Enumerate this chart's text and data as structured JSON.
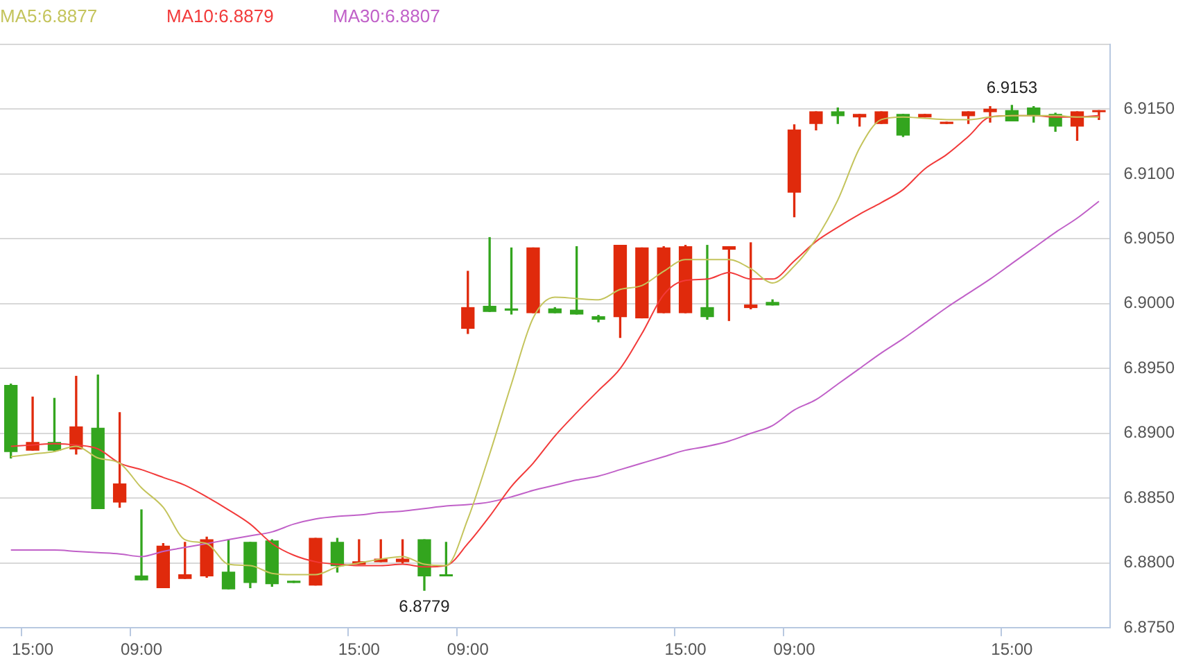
{
  "chart_data": {
    "type": "candlestick",
    "categories": [
      null,
      "15:00",
      null,
      null,
      null,
      null,
      "09:00",
      null,
      null,
      null,
      null,
      null,
      null,
      null,
      null,
      null,
      "15:00",
      null,
      null,
      null,
      null,
      "09:00",
      null,
      null,
      null,
      null,
      null,
      null,
      null,
      null,
      null,
      "15:00",
      null,
      null,
      null,
      null,
      "09:00",
      null,
      null,
      null,
      null,
      null,
      null,
      null,
      null,
      null,
      "15:00",
      null,
      null,
      null,
      null
    ],
    "ohlc": [
      [
        6.8937,
        6.8938,
        6.8881,
        6.8886
      ],
      [
        6.8887,
        6.8928,
        6.8887,
        6.8893
      ],
      [
        6.8893,
        6.8927,
        6.8886,
        6.8887
      ],
      [
        6.8888,
        6.8944,
        6.8884,
        6.8905
      ],
      [
        6.8904,
        6.8945,
        6.8842,
        6.8842
      ],
      [
        6.8847,
        6.8916,
        6.8843,
        6.8861
      ],
      [
        6.879,
        6.8841,
        6.8787,
        6.8787
      ],
      [
        6.8781,
        6.8815,
        6.8781,
        6.8813
      ],
      [
        6.8788,
        6.8816,
        6.8788,
        6.8791
      ],
      [
        6.879,
        6.882,
        6.8789,
        6.8818
      ],
      [
        6.8793,
        6.8818,
        6.878,
        6.878
      ],
      [
        6.8816,
        6.8816,
        6.8781,
        6.8785
      ],
      [
        6.8817,
        6.8818,
        6.8782,
        6.8784
      ],
      [
        6.8786,
        6.8786,
        6.8785,
        6.8785
      ],
      [
        6.8783,
        6.8819,
        6.8783,
        6.8819
      ],
      [
        6.8816,
        6.8819,
        6.8793,
        6.8798
      ],
      [
        6.8799,
        6.8818,
        6.8799,
        6.8801
      ],
      [
        6.8801,
        6.8818,
        6.8801,
        6.8803
      ],
      [
        6.8801,
        6.8818,
        6.88,
        6.8803
      ],
      [
        6.8818,
        6.8818,
        6.8779,
        6.879
      ],
      [
        6.8791,
        6.8816,
        6.879,
        6.879
      ],
      [
        6.8981,
        6.9025,
        6.8977,
        6.8997
      ],
      [
        6.8998,
        6.9051,
        6.8994,
        6.8994
      ],
      [
        6.8996,
        6.9043,
        6.8992,
        6.8995
      ],
      [
        6.8993,
        6.9043,
        6.8993,
        6.9043
      ],
      [
        6.8996,
        6.8997,
        6.8993,
        6.8993
      ],
      [
        6.8995,
        6.9044,
        6.8992,
        6.8992
      ],
      [
        6.899,
        6.8991,
        6.8986,
        6.8988
      ],
      [
        6.899,
        6.9045,
        6.8974,
        6.9045
      ],
      [
        6.8989,
        6.9043,
        6.8989,
        6.9043
      ],
      [
        6.8993,
        6.9044,
        6.8993,
        6.9043
      ],
      [
        6.8993,
        6.9045,
        6.8993,
        6.9044
      ],
      [
        6.8997,
        6.9045,
        6.8988,
        6.899
      ],
      [
        6.9042,
        6.9044,
        6.8987,
        6.9044
      ],
      [
        6.8997,
        6.9047,
        6.8996,
        6.8999
      ],
      [
        6.9001,
        6.9003,
        6.8999,
        6.8999
      ],
      [
        6.9086,
        6.9138,
        6.9067,
        6.9134
      ],
      [
        6.9139,
        6.9148,
        6.9134,
        6.9148
      ],
      [
        6.9148,
        6.9151,
        6.9139,
        6.9145
      ],
      [
        6.9144,
        6.9146,
        6.9137,
        6.9146
      ],
      [
        6.9139,
        6.9148,
        6.9139,
        6.9148
      ],
      [
        6.9146,
        6.9146,
        6.9129,
        6.913
      ],
      [
        6.9144,
        6.9146,
        6.9144,
        6.9146
      ],
      [
        6.9139,
        6.914,
        6.9139,
        6.914
      ],
      [
        6.9145,
        6.9148,
        6.9139,
        6.9148
      ],
      [
        6.9148,
        6.9152,
        6.914,
        6.915
      ],
      [
        6.9149,
        6.9153,
        6.9141,
        6.9141
      ],
      [
        6.9151,
        6.9152,
        6.914,
        6.9145
      ],
      [
        6.9146,
        6.9147,
        6.9133,
        6.9137
      ],
      [
        6.9137,
        6.9148,
        6.9126,
        6.9148
      ],
      [
        6.9148,
        6.9149,
        6.9142,
        6.9149
      ]
    ],
    "colors": [
      "#33a51e",
      "#e02a0c",
      "#33a51e",
      "#e02a0c",
      "#33a51e",
      "#e02a0c",
      "#33a51e",
      "#e02a0c",
      "#e02a0c",
      "#e02a0c",
      "#33a51e",
      "#33a51e",
      "#33a51e",
      "#33a51e",
      "#e02a0c",
      "#33a51e",
      "#e02a0c",
      "#e02a0c",
      "#e02a0c",
      "#33a51e",
      "#33a51e",
      "#e02a0c",
      "#33a51e",
      "#33a51e",
      "#e02a0c",
      "#33a51e",
      "#33a51e",
      "#33a51e",
      "#e02a0c",
      "#e02a0c",
      "#e02a0c",
      "#e02a0c",
      "#33a51e",
      "#e02a0c",
      "#e02a0c",
      "#33a51e",
      "#e02a0c",
      "#e02a0c",
      "#33a51e",
      "#e02a0c",
      "#e02a0c",
      "#33a51e",
      "#e02a0c",
      "#e02a0c",
      "#e02a0c",
      "#e02a0c",
      "#33a51e",
      "#33a51e",
      "#33a51e",
      "#e02a0c",
      "#e02a0c"
    ],
    "series": [
      {
        "name": "MA5:6.8877",
        "type": "line",
        "color": "#c4c45c",
        "values": [
          6.8882,
          6.8884,
          6.8886,
          6.889,
          6.8881,
          6.8877,
          6.8858,
          6.8843,
          6.8818,
          6.8815,
          6.8799,
          6.8798,
          6.8792,
          6.8791,
          6.8791,
          6.8797,
          6.88,
          6.8803,
          6.8805,
          6.8799,
          6.8798,
          6.8834,
          6.8884,
          6.8938,
          6.8989,
          6.9005,
          6.9004,
          6.9003,
          6.9011,
          6.9014,
          6.9025,
          6.9034,
          6.9034,
          6.9034,
          6.9027,
          6.9016,
          6.9029,
          6.905,
          6.908,
          6.912,
          6.9142,
          6.9144,
          6.9143,
          6.9142,
          6.9142,
          6.9144,
          6.9145,
          6.9145,
          6.9145,
          6.9144,
          6.9144
        ]
      },
      {
        "name": "MA10:6.8879",
        "type": "line",
        "color": "#f23a3a",
        "values": [
          6.889,
          6.8891,
          6.8892,
          6.8891,
          6.8888,
          6.8877,
          6.8872,
          6.8866,
          6.886,
          6.8851,
          6.8841,
          6.883,
          6.8815,
          6.8806,
          6.8801,
          6.8799,
          6.8798,
          6.8798,
          6.8799,
          6.8797,
          6.8798,
          6.8815,
          6.8836,
          6.8859,
          6.8877,
          6.8898,
          6.8916,
          6.8933,
          6.895,
          6.8977,
          6.9007,
          6.9018,
          6.9019,
          6.9024,
          6.9019,
          6.9019,
          6.9033,
          6.9048,
          6.9059,
          6.9069,
          6.9078,
          6.9088,
          6.9104,
          6.9115,
          6.9129,
          6.9144,
          6.9145,
          6.9145,
          6.9144,
          6.9144,
          6.9145
        ]
      },
      {
        "name": "MA30:6.8807",
        "type": "line",
        "color": "#c060c8",
        "values": [
          6.881,
          6.881,
          6.881,
          6.8809,
          6.8808,
          6.8807,
          6.8805,
          6.8809,
          6.8812,
          6.8815,
          6.8818,
          6.8821,
          6.8824,
          6.883,
          6.8834,
          6.8836,
          6.8837,
          6.8839,
          6.884,
          6.8842,
          6.8844,
          6.8845,
          6.8847,
          6.8851,
          6.8856,
          6.886,
          6.8864,
          6.8867,
          6.8872,
          6.8877,
          6.8882,
          6.8887,
          6.889,
          6.8894,
          6.89,
          6.8906,
          6.8918,
          6.8926,
          6.8938,
          6.895,
          6.8962,
          6.8973,
          6.8985,
          6.8997,
          6.9008,
          6.9019,
          6.9031,
          6.9043,
          6.9055,
          6.9066,
          6.9079
        ]
      }
    ],
    "ylim": [
      6.875,
      6.92
    ],
    "yticks": [
      {
        "value": 6.875,
        "label": "6.8750"
      },
      {
        "value": 6.88,
        "label": "6.8800"
      },
      {
        "value": 6.885,
        "label": "6.8850"
      },
      {
        "value": 6.89,
        "label": "6.8900"
      },
      {
        "value": 6.895,
        "label": "6.8950"
      },
      {
        "value": 6.9,
        "label": "6.9000"
      },
      {
        "value": 6.905,
        "label": "6.9050"
      },
      {
        "value": 6.91,
        "label": "6.9100"
      },
      {
        "value": 6.915,
        "label": "6.9150"
      },
      {
        "value": 6.92,
        "label": null
      }
    ],
    "annotations": [
      {
        "text": "6.9153",
        "y": 6.9153
      },
      {
        "text": "6.8779",
        "y": 6.8779
      }
    ],
    "grid": "y",
    "legend": "top left",
    "marker": "none"
  }
}
